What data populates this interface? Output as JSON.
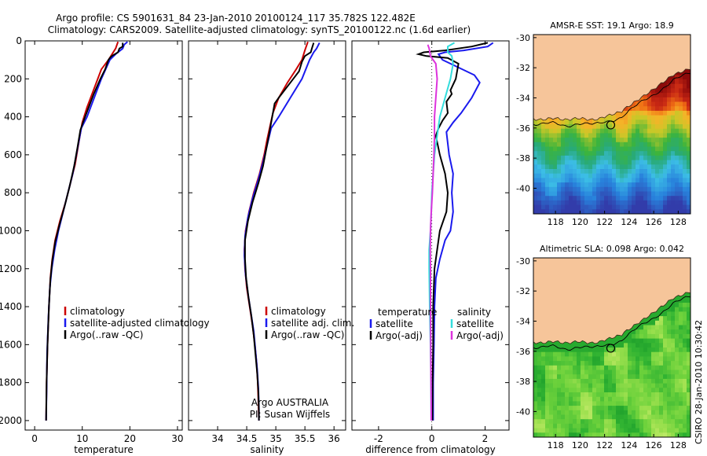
{
  "header": {
    "title_line1": "Argo profile: CS 5901631_84 23-Jan-2010 20100124_117 35.782S 122.482E",
    "title_line2": "Climatology: CARS2009. Satellite-adjusted climatology: synTS_20100122.nc (1.6d earlier)"
  },
  "side_label": "CSIRO 28-Jan-2010 10:30:42",
  "colors": {
    "red": "#cc0000",
    "blue": "#1a1aee",
    "black": "#000000",
    "cyan": "#33dddd",
    "magenta": "#dd33dd",
    "land": "#f6c59a"
  },
  "chart_data": [
    {
      "id": "temperature",
      "type": "line",
      "xlabel": "temperature",
      "ylabel": "",
      "xlim": [
        -2,
        31
      ],
      "ylim": [
        2050,
        0
      ],
      "xticks": [
        0,
        10,
        20,
        30
      ],
      "yticks": [
        0,
        200,
        400,
        600,
        800,
        1000,
        1200,
        1400,
        1600,
        1800,
        2000
      ],
      "series": [
        {
          "name": "climatology",
          "color": "red",
          "points": [
            [
              17.5,
              5
            ],
            [
              17,
              40
            ],
            [
              15.5,
              100
            ],
            [
              14,
              150
            ],
            [
              12.5,
              250
            ],
            [
              11,
              350
            ],
            [
              10,
              430
            ],
            [
              9.3,
              530
            ],
            [
              8.5,
              650
            ],
            [
              7.5,
              750
            ],
            [
              6.5,
              850
            ],
            [
              5.3,
              950
            ],
            [
              4.3,
              1050
            ],
            [
              3.7,
              1150
            ],
            [
              3.3,
              1250
            ],
            [
              3,
              1400
            ],
            [
              2.7,
              1600
            ],
            [
              2.5,
              1800
            ],
            [
              2.4,
              2000
            ]
          ]
        },
        {
          "name": "satellite-adjusted climatology",
          "color": "blue",
          "points": [
            [
              19.5,
              5
            ],
            [
              18.8,
              20
            ],
            [
              18.5,
              40
            ],
            [
              17,
              70
            ],
            [
              15.8,
              100
            ],
            [
              14,
              200
            ],
            [
              12.5,
              300
            ],
            [
              11,
              400
            ],
            [
              9.8,
              460
            ],
            [
              8.9,
              580
            ],
            [
              8,
              700
            ],
            [
              7,
              800
            ],
            [
              6,
              900
            ],
            [
              5,
              1000
            ],
            [
              4.2,
              1100
            ],
            [
              3.6,
              1200
            ],
            [
              3.2,
              1300
            ],
            [
              2.9,
              1450
            ],
            [
              2.6,
              1650
            ],
            [
              2.5,
              1850
            ],
            [
              2.4,
              2000
            ]
          ]
        },
        {
          "name": "Argo(..raw -QC)",
          "color": "black",
          "points": [
            [
              18.5,
              10
            ],
            [
              18.5,
              30
            ],
            [
              17.8,
              40
            ],
            [
              17.5,
              60
            ],
            [
              16.2,
              80
            ],
            [
              15.8,
              90
            ],
            [
              15.5,
              100
            ],
            [
              14.8,
              150
            ],
            [
              13.8,
              200
            ],
            [
              12.4,
              280
            ],
            [
              11.2,
              360
            ],
            [
              10.3,
              420
            ],
            [
              9.6,
              470
            ],
            [
              9,
              560
            ],
            [
              8.3,
              660
            ],
            [
              7.3,
              770
            ],
            [
              6.3,
              870
            ],
            [
              5.2,
              970
            ],
            [
              4.3,
              1060
            ],
            [
              3.7,
              1160
            ],
            [
              3.3,
              1260
            ],
            [
              3,
              1400
            ],
            [
              2.7,
              1600
            ],
            [
              2.5,
              1800
            ],
            [
              2.4,
              2000
            ]
          ]
        }
      ],
      "legend": [
        "climatology",
        "satellite-adjusted climatology",
        "Argo(..raw -QC)"
      ]
    },
    {
      "id": "salinity",
      "type": "line",
      "xlabel": "salinity",
      "ylabel": "",
      "xlim": [
        33.5,
        36.2
      ],
      "ylim": [
        2050,
        0
      ],
      "xticks": [
        34,
        34.5,
        35,
        35.5,
        36
      ],
      "series": [
        {
          "name": "climatology",
          "color": "red",
          "points": [
            [
              35.55,
              5
            ],
            [
              35.5,
              50
            ],
            [
              35.45,
              100
            ],
            [
              35.35,
              150
            ],
            [
              35.2,
              220
            ],
            [
              35.05,
              300
            ],
            [
              34.95,
              380
            ],
            [
              34.9,
              450
            ],
            [
              34.85,
              520
            ],
            [
              34.8,
              600
            ],
            [
              34.72,
              700
            ],
            [
              34.62,
              800
            ],
            [
              34.54,
              900
            ],
            [
              34.48,
              1000
            ],
            [
              34.46,
              1100
            ],
            [
              34.47,
              1200
            ],
            [
              34.5,
              1300
            ],
            [
              34.55,
              1400
            ],
            [
              34.6,
              1500
            ],
            [
              34.64,
              1600
            ],
            [
              34.67,
              1700
            ],
            [
              34.69,
              1800
            ],
            [
              34.7,
              1900
            ],
            [
              34.71,
              2000
            ]
          ]
        },
        {
          "name": "satellite adj. clim.",
          "color": "blue",
          "points": [
            [
              35.75,
              10
            ],
            [
              35.7,
              40
            ],
            [
              35.65,
              60
            ],
            [
              35.58,
              100
            ],
            [
              35.45,
              200
            ],
            [
              35.25,
              300
            ],
            [
              35.05,
              400
            ],
            [
              34.92,
              460
            ],
            [
              34.85,
              550
            ],
            [
              34.78,
              640
            ],
            [
              34.7,
              730
            ],
            [
              34.6,
              830
            ],
            [
              34.52,
              930
            ],
            [
              34.47,
              1030
            ],
            [
              34.46,
              1130
            ],
            [
              34.48,
              1230
            ],
            [
              34.52,
              1330
            ],
            [
              34.57,
              1430
            ],
            [
              34.62,
              1530
            ],
            [
              34.65,
              1630
            ],
            [
              34.68,
              1730
            ],
            [
              34.7,
              1830
            ],
            [
              34.71,
              1930
            ],
            [
              34.71,
              2000
            ]
          ]
        },
        {
          "name": "Argo(..raw -QC)",
          "color": "black",
          "points": [
            [
              35.65,
              10
            ],
            [
              35.62,
              40
            ],
            [
              35.6,
              60
            ],
            [
              35.5,
              80
            ],
            [
              35.45,
              110
            ],
            [
              35.4,
              160
            ],
            [
              35.3,
              200
            ],
            [
              35.05,
              300
            ],
            [
              34.98,
              330
            ],
            [
              34.95,
              380
            ],
            [
              34.92,
              430
            ],
            [
              34.88,
              500
            ],
            [
              34.83,
              580
            ],
            [
              34.78,
              660
            ],
            [
              34.7,
              750
            ],
            [
              34.6,
              850
            ],
            [
              34.52,
              950
            ],
            [
              34.47,
              1050
            ],
            [
              34.47,
              1150
            ],
            [
              34.49,
              1250
            ],
            [
              34.53,
              1350
            ],
            [
              34.58,
              1450
            ],
            [
              34.62,
              1550
            ],
            [
              34.65,
              1650
            ],
            [
              34.68,
              1750
            ],
            [
              34.7,
              1850
            ],
            [
              34.71,
              1950
            ],
            [
              34.71,
              2000
            ]
          ]
        }
      ],
      "legend": [
        "climatology",
        "satellite adj. clim.",
        "Argo(..raw -QC)"
      ],
      "annotation_line1": "Argo AUSTRALIA",
      "annotation_line2": "PI: Susan Wijffels"
    },
    {
      "id": "difference",
      "type": "line",
      "xlabel": "difference from climatology",
      "ylabel": "",
      "xlim": [
        -3,
        2.9
      ],
      "ylim": [
        2050,
        0
      ],
      "xticks": [
        -2,
        0,
        2
      ],
      "series": [
        {
          "name": "temperature satellite",
          "color": "blue",
          "points": [
            [
              2.3,
              10
            ],
            [
              2.1,
              30
            ],
            [
              1.2,
              50
            ],
            [
              0.5,
              60
            ],
            [
              0.25,
              70
            ],
            [
              0.4,
              100
            ],
            [
              1.6,
              180
            ],
            [
              1.8,
              220
            ],
            [
              1.5,
              300
            ],
            [
              1.1,
              380
            ],
            [
              0.8,
              430
            ],
            [
              0.55,
              480
            ],
            [
              0.65,
              600
            ],
            [
              0.8,
              700
            ],
            [
              0.75,
              800
            ],
            [
              0.8,
              900
            ],
            [
              0.7,
              1000
            ],
            [
              0.5,
              1050
            ],
            [
              0.3,
              1150
            ],
            [
              0.15,
              1250
            ],
            [
              0.1,
              1400
            ],
            [
              0.08,
              1600
            ],
            [
              0.05,
              1800
            ],
            [
              0.05,
              2000
            ]
          ]
        },
        {
          "name": "temperature Argo(-adj)",
          "color": "black",
          "points": [
            [
              2.1,
              10
            ],
            [
              1.5,
              30
            ],
            [
              0.5,
              50
            ],
            [
              -0.3,
              60
            ],
            [
              -0.5,
              70
            ],
            [
              -0.2,
              80
            ],
            [
              0.6,
              90
            ],
            [
              1,
              120
            ],
            [
              0.9,
              200
            ],
            [
              0.7,
              260
            ],
            [
              0.75,
              280
            ],
            [
              0.55,
              320
            ],
            [
              0.6,
              380
            ],
            [
              0.4,
              420
            ],
            [
              0.25,
              460
            ],
            [
              0.15,
              500
            ],
            [
              0.3,
              600
            ],
            [
              0.5,
              700
            ],
            [
              0.6,
              800
            ],
            [
              0.55,
              900
            ],
            [
              0.3,
              1000
            ],
            [
              0.2,
              1100
            ],
            [
              0.1,
              1200
            ],
            [
              0.05,
              1400
            ],
            [
              0.05,
              1600
            ],
            [
              0.03,
              1800
            ],
            [
              0.02,
              2000
            ]
          ]
        },
        {
          "name": "salinity satellite",
          "color": "cyan",
          "points": [
            [
              0.85,
              10
            ],
            [
              0.6,
              30
            ],
            [
              0.6,
              60
            ],
            [
              0.75,
              80
            ],
            [
              0.8,
              120
            ],
            [
              0.7,
              200
            ],
            [
              0.5,
              300
            ],
            [
              0.3,
              400
            ],
            [
              0.2,
              500
            ],
            [
              0.1,
              600
            ],
            [
              0.05,
              700
            ],
            [
              0,
              800
            ],
            [
              -0.02,
              900
            ],
            [
              -0.05,
              1000
            ],
            [
              -0.1,
              1100
            ],
            [
              -0.1,
              1200
            ],
            [
              -0.08,
              1400
            ],
            [
              -0.05,
              1600
            ],
            [
              -0.03,
              1800
            ],
            [
              -0.02,
              2000
            ]
          ]
        },
        {
          "name": "salinity Argo(-adj)",
          "color": "magenta",
          "points": [
            [
              -0.15,
              20
            ],
            [
              -0.1,
              40
            ],
            [
              -0.05,
              80
            ],
            [
              0.15,
              120
            ],
            [
              0.2,
              200
            ],
            [
              0.15,
              300
            ],
            [
              0.1,
              400
            ],
            [
              0.1,
              500
            ],
            [
              0.08,
              600
            ],
            [
              0.05,
              700
            ],
            [
              0.02,
              800
            ],
            [
              -0.02,
              900
            ],
            [
              -0.05,
              1000
            ],
            [
              -0.06,
              1100
            ],
            [
              -0.05,
              1200
            ],
            [
              -0.05,
              1400
            ],
            [
              -0.04,
              1600
            ],
            [
              -0.03,
              1800
            ],
            [
              -0.02,
              2000
            ]
          ]
        }
      ],
      "legend_temperature_title": "temperature",
      "legend_salinity_title": "salinity",
      "legend_items": [
        "satellite",
        "Argo(-adj)"
      ]
    },
    {
      "id": "map_sst",
      "type": "heatmap",
      "title": "AMSR-E SST: 19.1 Argo: 18.9",
      "xlim": [
        116.2,
        129
      ],
      "ylim": [
        -41.7,
        -29.8
      ],
      "xticks": [
        118,
        120,
        122,
        124,
        126,
        128
      ],
      "yticks": [
        -30,
        -32,
        -34,
        -36,
        -38,
        -40
      ],
      "marker": [
        122.5,
        -35.8
      ]
    },
    {
      "id": "map_sla",
      "type": "heatmap",
      "title": "Altimetric SLA: 0.098 Argo: 0.042",
      "xlim": [
        116.2,
        129
      ],
      "ylim": [
        -41.7,
        -29.8
      ],
      "xticks": [
        118,
        120,
        122,
        124,
        126,
        128
      ],
      "yticks": [
        -30,
        -32,
        -34,
        -36,
        -38,
        -40
      ],
      "marker": [
        122.5,
        -35.8
      ]
    }
  ]
}
